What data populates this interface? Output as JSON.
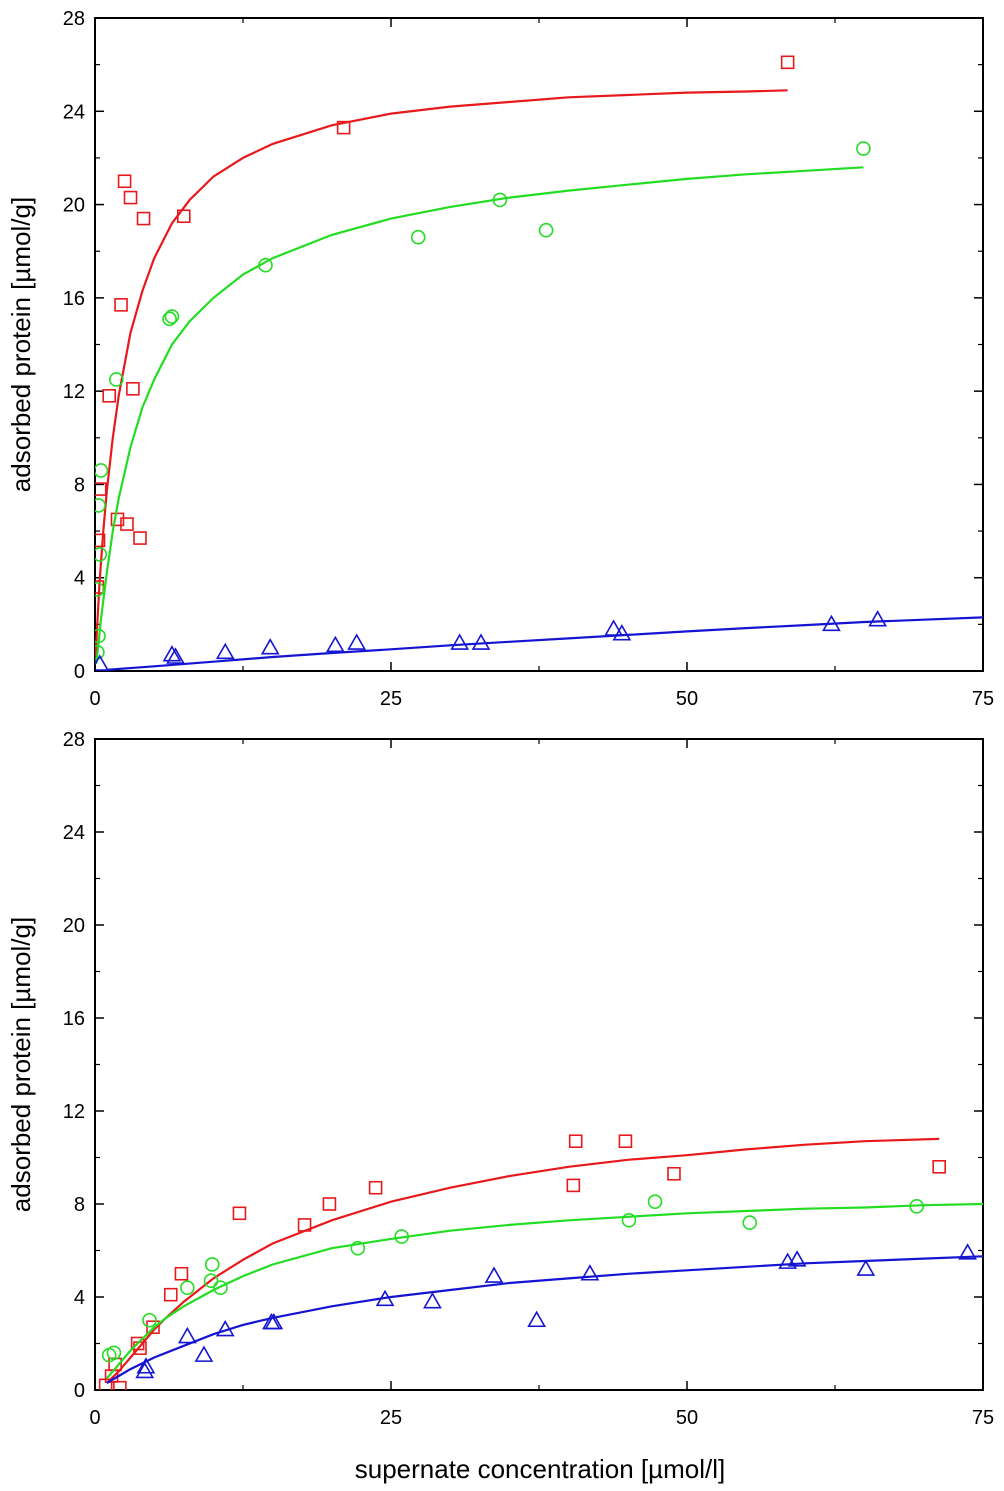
{
  "colors": {
    "red": "#e8191c",
    "green": "#22dd22",
    "blue": "#1414d2",
    "axis": "#000000"
  },
  "xlabel": "supernate concentration [µmol/l]",
  "chart_data": [
    {
      "type": "scatter",
      "panel": "top",
      "title": "",
      "xlabel": "",
      "ylabel": "adsorbed protein [µmol/g]",
      "xlim": [
        0,
        75
      ],
      "ylim": [
        0,
        28
      ],
      "xticks": [
        0,
        25,
        50,
        75
      ],
      "yticks": [
        0,
        4,
        8,
        12,
        16,
        20,
        24,
        28
      ],
      "grid": false,
      "series": [
        {
          "name": "red squares",
          "marker": "square",
          "color": "red",
          "points": [
            [
              0.2,
              3.6
            ],
            [
              0.3,
              5.6
            ],
            [
              0.4,
              7.8
            ],
            [
              1.2,
              11.8
            ],
            [
              1.9,
              6.5
            ],
            [
              2.2,
              15.7
            ],
            [
              2.5,
              21.0
            ],
            [
              2.7,
              6.3
            ],
            [
              3.0,
              20.3
            ],
            [
              3.2,
              12.1
            ],
            [
              3.8,
              5.7
            ],
            [
              4.1,
              19.4
            ],
            [
              7.5,
              19.5
            ],
            [
              21.0,
              23.3
            ],
            [
              58.5,
              26.1
            ]
          ],
          "fit": [
            [
              0.05,
              0.6
            ],
            [
              0.2,
              2.1
            ],
            [
              0.4,
              3.9
            ],
            [
              0.7,
              6.0
            ],
            [
              1.0,
              7.7
            ],
            [
              1.5,
              10.0
            ],
            [
              2.0,
              11.8
            ],
            [
              3.0,
              14.5
            ],
            [
              4.0,
              16.3
            ],
            [
              5.0,
              17.7
            ],
            [
              6.5,
              19.2
            ],
            [
              8.0,
              20.2
            ],
            [
              10,
              21.2
            ],
            [
              12.5,
              22.0
            ],
            [
              15,
              22.6
            ],
            [
              20,
              23.4
            ],
            [
              25,
              23.9
            ],
            [
              30,
              24.2
            ],
            [
              35,
              24.4
            ],
            [
              40,
              24.6
            ],
            [
              45,
              24.7
            ],
            [
              50,
              24.8
            ],
            [
              55,
              24.85
            ],
            [
              58.5,
              24.9
            ]
          ]
        },
        {
          "name": "green circles",
          "marker": "circle",
          "color": "green",
          "points": [
            [
              0.2,
              0.8
            ],
            [
              0.3,
              1.5
            ],
            [
              0.2,
              3.5
            ],
            [
              0.4,
              5.0
            ],
            [
              0.3,
              7.1
            ],
            [
              0.5,
              8.6
            ],
            [
              1.8,
              12.5
            ],
            [
              6.3,
              15.1
            ],
            [
              6.5,
              15.2
            ],
            [
              14.4,
              17.4
            ],
            [
              27.3,
              18.6
            ],
            [
              34.2,
              20.2
            ],
            [
              38.1,
              18.9
            ],
            [
              64.9,
              22.4
            ]
          ],
          "fit": [
            [
              0.1,
              0.3
            ],
            [
              0.3,
              1.2
            ],
            [
              0.5,
              2.2
            ],
            [
              1.0,
              4.2
            ],
            [
              1.5,
              6.0
            ],
            [
              2.0,
              7.4
            ],
            [
              3.0,
              9.6
            ],
            [
              4.0,
              11.3
            ],
            [
              5.0,
              12.5
            ],
            [
              6.5,
              14.0
            ],
            [
              8.0,
              15.0
            ],
            [
              10,
              16.0
            ],
            [
              12.5,
              17.0
            ],
            [
              15,
              17.7
            ],
            [
              20,
              18.7
            ],
            [
              25,
              19.4
            ],
            [
              30,
              19.9
            ],
            [
              35,
              20.3
            ],
            [
              40,
              20.6
            ],
            [
              45,
              20.85
            ],
            [
              50,
              21.1
            ],
            [
              55,
              21.3
            ],
            [
              60,
              21.45
            ],
            [
              64.9,
              21.6
            ]
          ]
        },
        {
          "name": "blue triangles",
          "marker": "triangle",
          "color": "blue",
          "points": [
            [
              0.4,
              0.3
            ],
            [
              6.5,
              0.7
            ],
            [
              6.8,
              0.6
            ],
            [
              11.0,
              0.8
            ],
            [
              14.8,
              1.0
            ],
            [
              20.3,
              1.1
            ],
            [
              22.1,
              1.2
            ],
            [
              30.8,
              1.2
            ],
            [
              32.6,
              1.2
            ],
            [
              43.8,
              1.8
            ],
            [
              44.5,
              1.6
            ],
            [
              62.2,
              2.0
            ],
            [
              66.1,
              2.2
            ]
          ],
          "fit": [
            [
              1.0,
              0.05
            ],
            [
              5,
              0.2
            ],
            [
              10,
              0.4
            ],
            [
              15,
              0.6
            ],
            [
              20,
              0.77
            ],
            [
              25,
              0.93
            ],
            [
              30,
              1.1
            ],
            [
              35,
              1.25
            ],
            [
              40,
              1.4
            ],
            [
              45,
              1.55
            ],
            [
              50,
              1.7
            ],
            [
              55,
              1.84
            ],
            [
              60,
              1.97
            ],
            [
              65,
              2.1
            ],
            [
              70,
              2.2
            ],
            [
              75,
              2.3
            ]
          ]
        }
      ]
    },
    {
      "type": "scatter",
      "panel": "bottom",
      "title": "",
      "xlabel": "supernate concentration [µmol/l]",
      "ylabel": "adsorbed protein [µmol/g]",
      "xlim": [
        0,
        75
      ],
      "ylim": [
        0,
        28
      ],
      "xticks": [
        0,
        25,
        50,
        75
      ],
      "yticks": [
        0,
        4,
        8,
        12,
        16,
        20,
        24,
        28
      ],
      "grid": false,
      "series": [
        {
          "name": "red squares",
          "marker": "square",
          "color": "red",
          "points": [
            [
              0.9,
              0.2
            ],
            [
              1.4,
              0.6
            ],
            [
              1.7,
              1.1
            ],
            [
              2.1,
              0.1
            ],
            [
              3.6,
              2.0
            ],
            [
              3.8,
              1.8
            ],
            [
              4.9,
              2.7
            ],
            [
              6.4,
              4.1
            ],
            [
              7.3,
              5.0
            ],
            [
              12.2,
              7.6
            ],
            [
              17.7,
              7.1
            ],
            [
              19.8,
              8.0
            ],
            [
              23.7,
              8.7
            ],
            [
              40.4,
              8.8
            ],
            [
              40.6,
              10.7
            ],
            [
              44.8,
              10.7
            ],
            [
              48.9,
              9.3
            ],
            [
              71.3,
              9.6
            ]
          ],
          "fit": [
            [
              1.0,
              0.3
            ],
            [
              2,
              0.8
            ],
            [
              3,
              1.4
            ],
            [
              4,
              2.0
            ],
            [
              5,
              2.6
            ],
            [
              6,
              3.1
            ],
            [
              7.5,
              3.8
            ],
            [
              10,
              4.8
            ],
            [
              12.5,
              5.6
            ],
            [
              15,
              6.3
            ],
            [
              20,
              7.3
            ],
            [
              25,
              8.1
            ],
            [
              30,
              8.7
            ],
            [
              35,
              9.2
            ],
            [
              40,
              9.6
            ],
            [
              45,
              9.9
            ],
            [
              50,
              10.1
            ],
            [
              55,
              10.35
            ],
            [
              60,
              10.55
            ],
            [
              65,
              10.7
            ],
            [
              71.3,
              10.8
            ]
          ]
        },
        {
          "name": "green circles",
          "marker": "circle",
          "color": "green",
          "points": [
            [
              1.2,
              1.5
            ],
            [
              1.6,
              1.6
            ],
            [
              4.6,
              3.0
            ],
            [
              7.8,
              4.4
            ],
            [
              9.8,
              4.7
            ],
            [
              9.9,
              5.4
            ],
            [
              10.6,
              4.4
            ],
            [
              22.2,
              6.1
            ],
            [
              25.9,
              6.6
            ],
            [
              45.1,
              7.3
            ],
            [
              47.3,
              8.1
            ],
            [
              55.3,
              7.2
            ],
            [
              69.4,
              7.9
            ]
          ],
          "fit": [
            [
              1.0,
              0.5
            ],
            [
              2,
              1.1
            ],
            [
              3,
              1.7
            ],
            [
              4,
              2.2
            ],
            [
              5,
              2.7
            ],
            [
              6,
              3.1
            ],
            [
              7.5,
              3.6
            ],
            [
              10,
              4.3
            ],
            [
              12.5,
              4.9
            ],
            [
              15,
              5.4
            ],
            [
              20,
              6.1
            ],
            [
              25,
              6.5
            ],
            [
              30,
              6.85
            ],
            [
              35,
              7.1
            ],
            [
              40,
              7.3
            ],
            [
              45,
              7.45
            ],
            [
              50,
              7.6
            ],
            [
              55,
              7.7
            ],
            [
              60,
              7.8
            ],
            [
              65,
              7.85
            ],
            [
              70,
              7.95
            ],
            [
              75,
              8.0
            ]
          ]
        },
        {
          "name": "blue triangles",
          "marker": "triangle",
          "color": "blue",
          "points": [
            [
              4.2,
              0.8
            ],
            [
              4.3,
              1.0
            ],
            [
              7.8,
              2.3
            ],
            [
              9.2,
              1.5
            ],
            [
              11.0,
              2.6
            ],
            [
              14.9,
              2.9
            ],
            [
              15.1,
              2.9
            ],
            [
              24.5,
              3.9
            ],
            [
              28.5,
              3.8
            ],
            [
              33.7,
              4.9
            ],
            [
              37.3,
              3.0
            ],
            [
              41.8,
              5.0
            ],
            [
              58.5,
              5.5
            ],
            [
              59.3,
              5.6
            ],
            [
              65.1,
              5.2
            ],
            [
              73.7,
              5.9
            ]
          ],
          "fit": [
            [
              1.0,
              0.3
            ],
            [
              2,
              0.6
            ],
            [
              3,
              0.9
            ],
            [
              5,
              1.4
            ],
            [
              7.5,
              1.9
            ],
            [
              10,
              2.4
            ],
            [
              12.5,
              2.8
            ],
            [
              15,
              3.1
            ],
            [
              20,
              3.6
            ],
            [
              25,
              4.0
            ],
            [
              30,
              4.3
            ],
            [
              35,
              4.6
            ],
            [
              40,
              4.8
            ],
            [
              45,
              5.0
            ],
            [
              50,
              5.15
            ],
            [
              55,
              5.3
            ],
            [
              60,
              5.45
            ],
            [
              65,
              5.55
            ],
            [
              70,
              5.65
            ],
            [
              75,
              5.75
            ]
          ]
        }
      ]
    }
  ]
}
